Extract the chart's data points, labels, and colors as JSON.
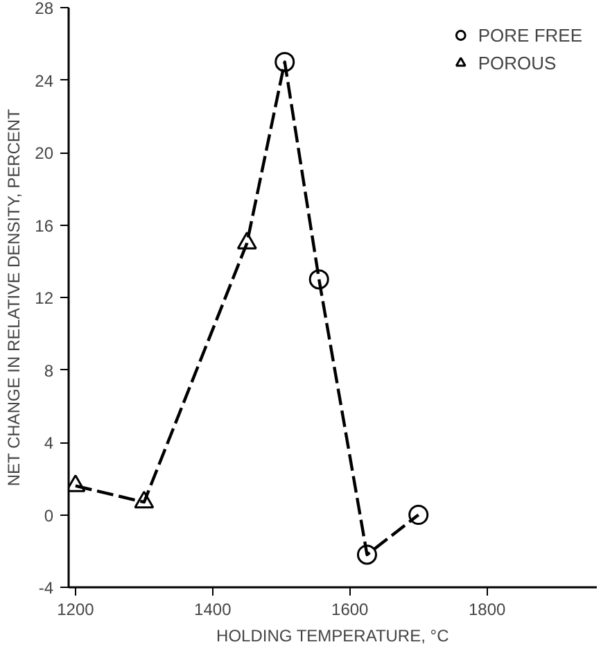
{
  "chart_data": {
    "type": "scatter",
    "xlabel": "HOLDING TEMPERATURE, °C",
    "ylabel": "NET CHANGE IN RELATIVE DENSITY, PERCENT",
    "xlim": [
      1190,
      1960
    ],
    "xticks": [
      1200,
      1400,
      1600,
      1800
    ],
    "ylim": [
      -4,
      28
    ],
    "yticks": [
      -4,
      0,
      4,
      8,
      12,
      16,
      20,
      24,
      28
    ],
    "grid": false,
    "legend": "top right",
    "series": [
      {
        "type": "line",
        "line_style": "dashed",
        "marker": "none",
        "color": "#000000",
        "x": [
          1200,
          1300,
          1450,
          1505,
          1555,
          1625,
          1700
        ],
        "values": [
          1.6,
          0.7,
          15,
          25,
          13,
          -2.2,
          0
        ]
      },
      {
        "name": "PORE FREE",
        "marker": "circle",
        "color": "#000000",
        "x": [
          1505,
          1555,
          1625,
          1700
        ],
        "values": [
          25,
          13,
          -2.2,
          0
        ]
      },
      {
        "name": "POROUS",
        "marker": "triangle",
        "color": "#000000",
        "x": [
          1200,
          1300,
          1450
        ],
        "values": [
          1.6,
          0.7,
          15
        ]
      }
    ]
  }
}
